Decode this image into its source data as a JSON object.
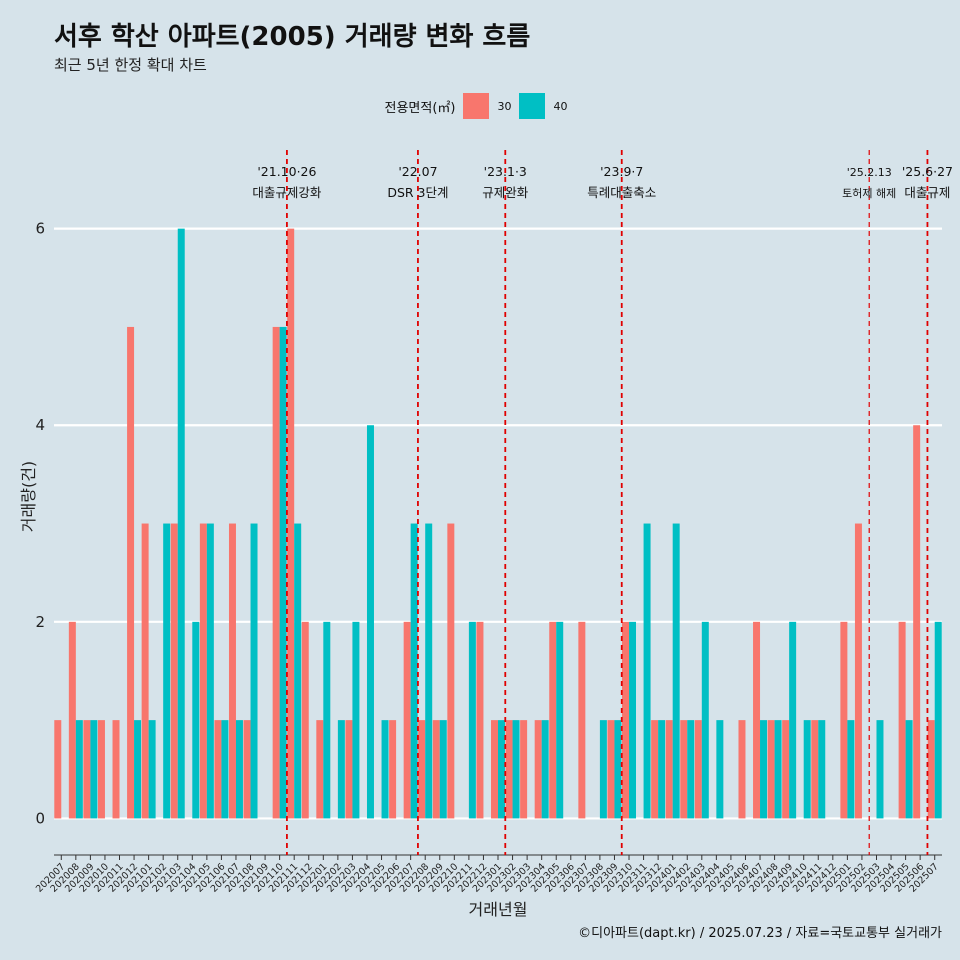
{
  "title": "서후 학산 아파트(2005) 거래량 변화 흐름",
  "subtitle": "최근 5년 한정 확대 차트",
  "caption": "©디아파트(dapt.kr) / 2025.07.23 / 자료=국토교통부 실거래가",
  "legend": {
    "title": "전용면적(㎡)",
    "items": [
      {
        "label": "30",
        "color": "#F8766D"
      },
      {
        "label": "40",
        "color": "#00BFC4"
      }
    ]
  },
  "chart_data": {
    "type": "bar",
    "xlabel": "거래년월",
    "ylabel": "거래량(건)",
    "ylim": [
      -0.25,
      6.8
    ],
    "yticks": [
      0,
      2,
      4,
      6
    ],
    "grid": true,
    "categories": [
      "202007",
      "202008",
      "202009",
      "202010",
      "202011",
      "202012",
      "202101",
      "202102",
      "202103",
      "202104",
      "202105",
      "202106",
      "202107",
      "202108",
      "202109",
      "202110",
      "202111",
      "202112",
      "202201",
      "202202",
      "202203",
      "202204",
      "202205",
      "202206",
      "202207",
      "202208",
      "202209",
      "202210",
      "202211",
      "202212",
      "202301",
      "202302",
      "202303",
      "202304",
      "202305",
      "202306",
      "202307",
      "202308",
      "202309",
      "202310",
      "202311",
      "202312",
      "202401",
      "202402",
      "202403",
      "202404",
      "202405",
      "202406",
      "202407",
      "202408",
      "202409",
      "202410",
      "202411",
      "202412",
      "202501",
      "202502",
      "202503",
      "202504",
      "202505",
      "202506",
      "202507"
    ],
    "series": [
      {
        "name": "30",
        "color": "#F8766D",
        "values": [
          1,
          2,
          1,
          1,
          1,
          5,
          3,
          0,
          3,
          0,
          3,
          1,
          3,
          1,
          0,
          5,
          6,
          2,
          1,
          0,
          1,
          0,
          0,
          1,
          2,
          1,
          1,
          3,
          0,
          2,
          1,
          1,
          1,
          1,
          2,
          0,
          2,
          0,
          1,
          2,
          0,
          1,
          1,
          1,
          1,
          0,
          0,
          1,
          2,
          1,
          1,
          0,
          1,
          0,
          2,
          3,
          0,
          0,
          2,
          4,
          1
        ]
      },
      {
        "name": "40",
        "color": "#00BFC4",
        "values": [
          0,
          1,
          1,
          0,
          0,
          1,
          1,
          3,
          6,
          2,
          3,
          1,
          1,
          3,
          0,
          5,
          3,
          0,
          2,
          1,
          2,
          4,
          1,
          0,
          3,
          3,
          1,
          0,
          2,
          0,
          1,
          1,
          0,
          1,
          2,
          0,
          0,
          1,
          1,
          2,
          3,
          1,
          3,
          1,
          2,
          1,
          0,
          0,
          1,
          1,
          2,
          1,
          1,
          0,
          1,
          0,
          1,
          0,
          1,
          0,
          2
        ]
      }
    ],
    "events": [
      {
        "date": "'21.10·26",
        "label": "대출규제강화",
        "after": "202110"
      },
      {
        "date": "'22.07",
        "label": "DSR 3단계",
        "after": "202207"
      },
      {
        "date": "'23.1·3",
        "label": "규제완화",
        "after": "202301"
      },
      {
        "date": "'23.9·7",
        "label": "특례대출축소",
        "after": "202309"
      },
      {
        "date": "'25.2.13",
        "label": "토허제 해제",
        "after": "202502"
      },
      {
        "date": "'25.6·27",
        "label": "대출규제",
        "after": "202506"
      }
    ]
  }
}
